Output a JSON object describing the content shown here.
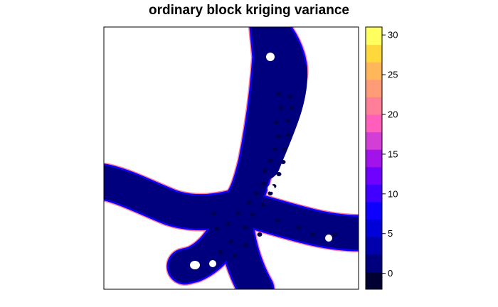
{
  "chart_data": {
    "type": "heatmap",
    "title": "ordinary block kriging variance",
    "xlabel": "",
    "ylabel": "",
    "colorbar": {
      "range": [
        -2,
        31
      ],
      "ticks": [
        0,
        5,
        10,
        15,
        20,
        25,
        30
      ],
      "tick_labels": [
        "0",
        "5",
        "10",
        "15",
        "20",
        "25",
        "30"
      ],
      "bin_width": 2.2,
      "colors": [
        "#000033",
        "#00007f",
        "#0000ac",
        "#0000d9",
        "#0d00ff",
        "#3f00ff",
        "#7000ff",
        "#a212ea",
        "#d33fd6",
        "#ff5fbb",
        "#ff7f99",
        "#ff9c77",
        "#ffb75a",
        "#ffd93c",
        "#ffff60"
      ]
    },
    "map": {
      "background": "#ffffff",
      "fill_color": "#00007f",
      "edge_color": "#0d00ff",
      "rim_color": "#ff7f99",
      "hole_color": "#ffffff"
    }
  }
}
